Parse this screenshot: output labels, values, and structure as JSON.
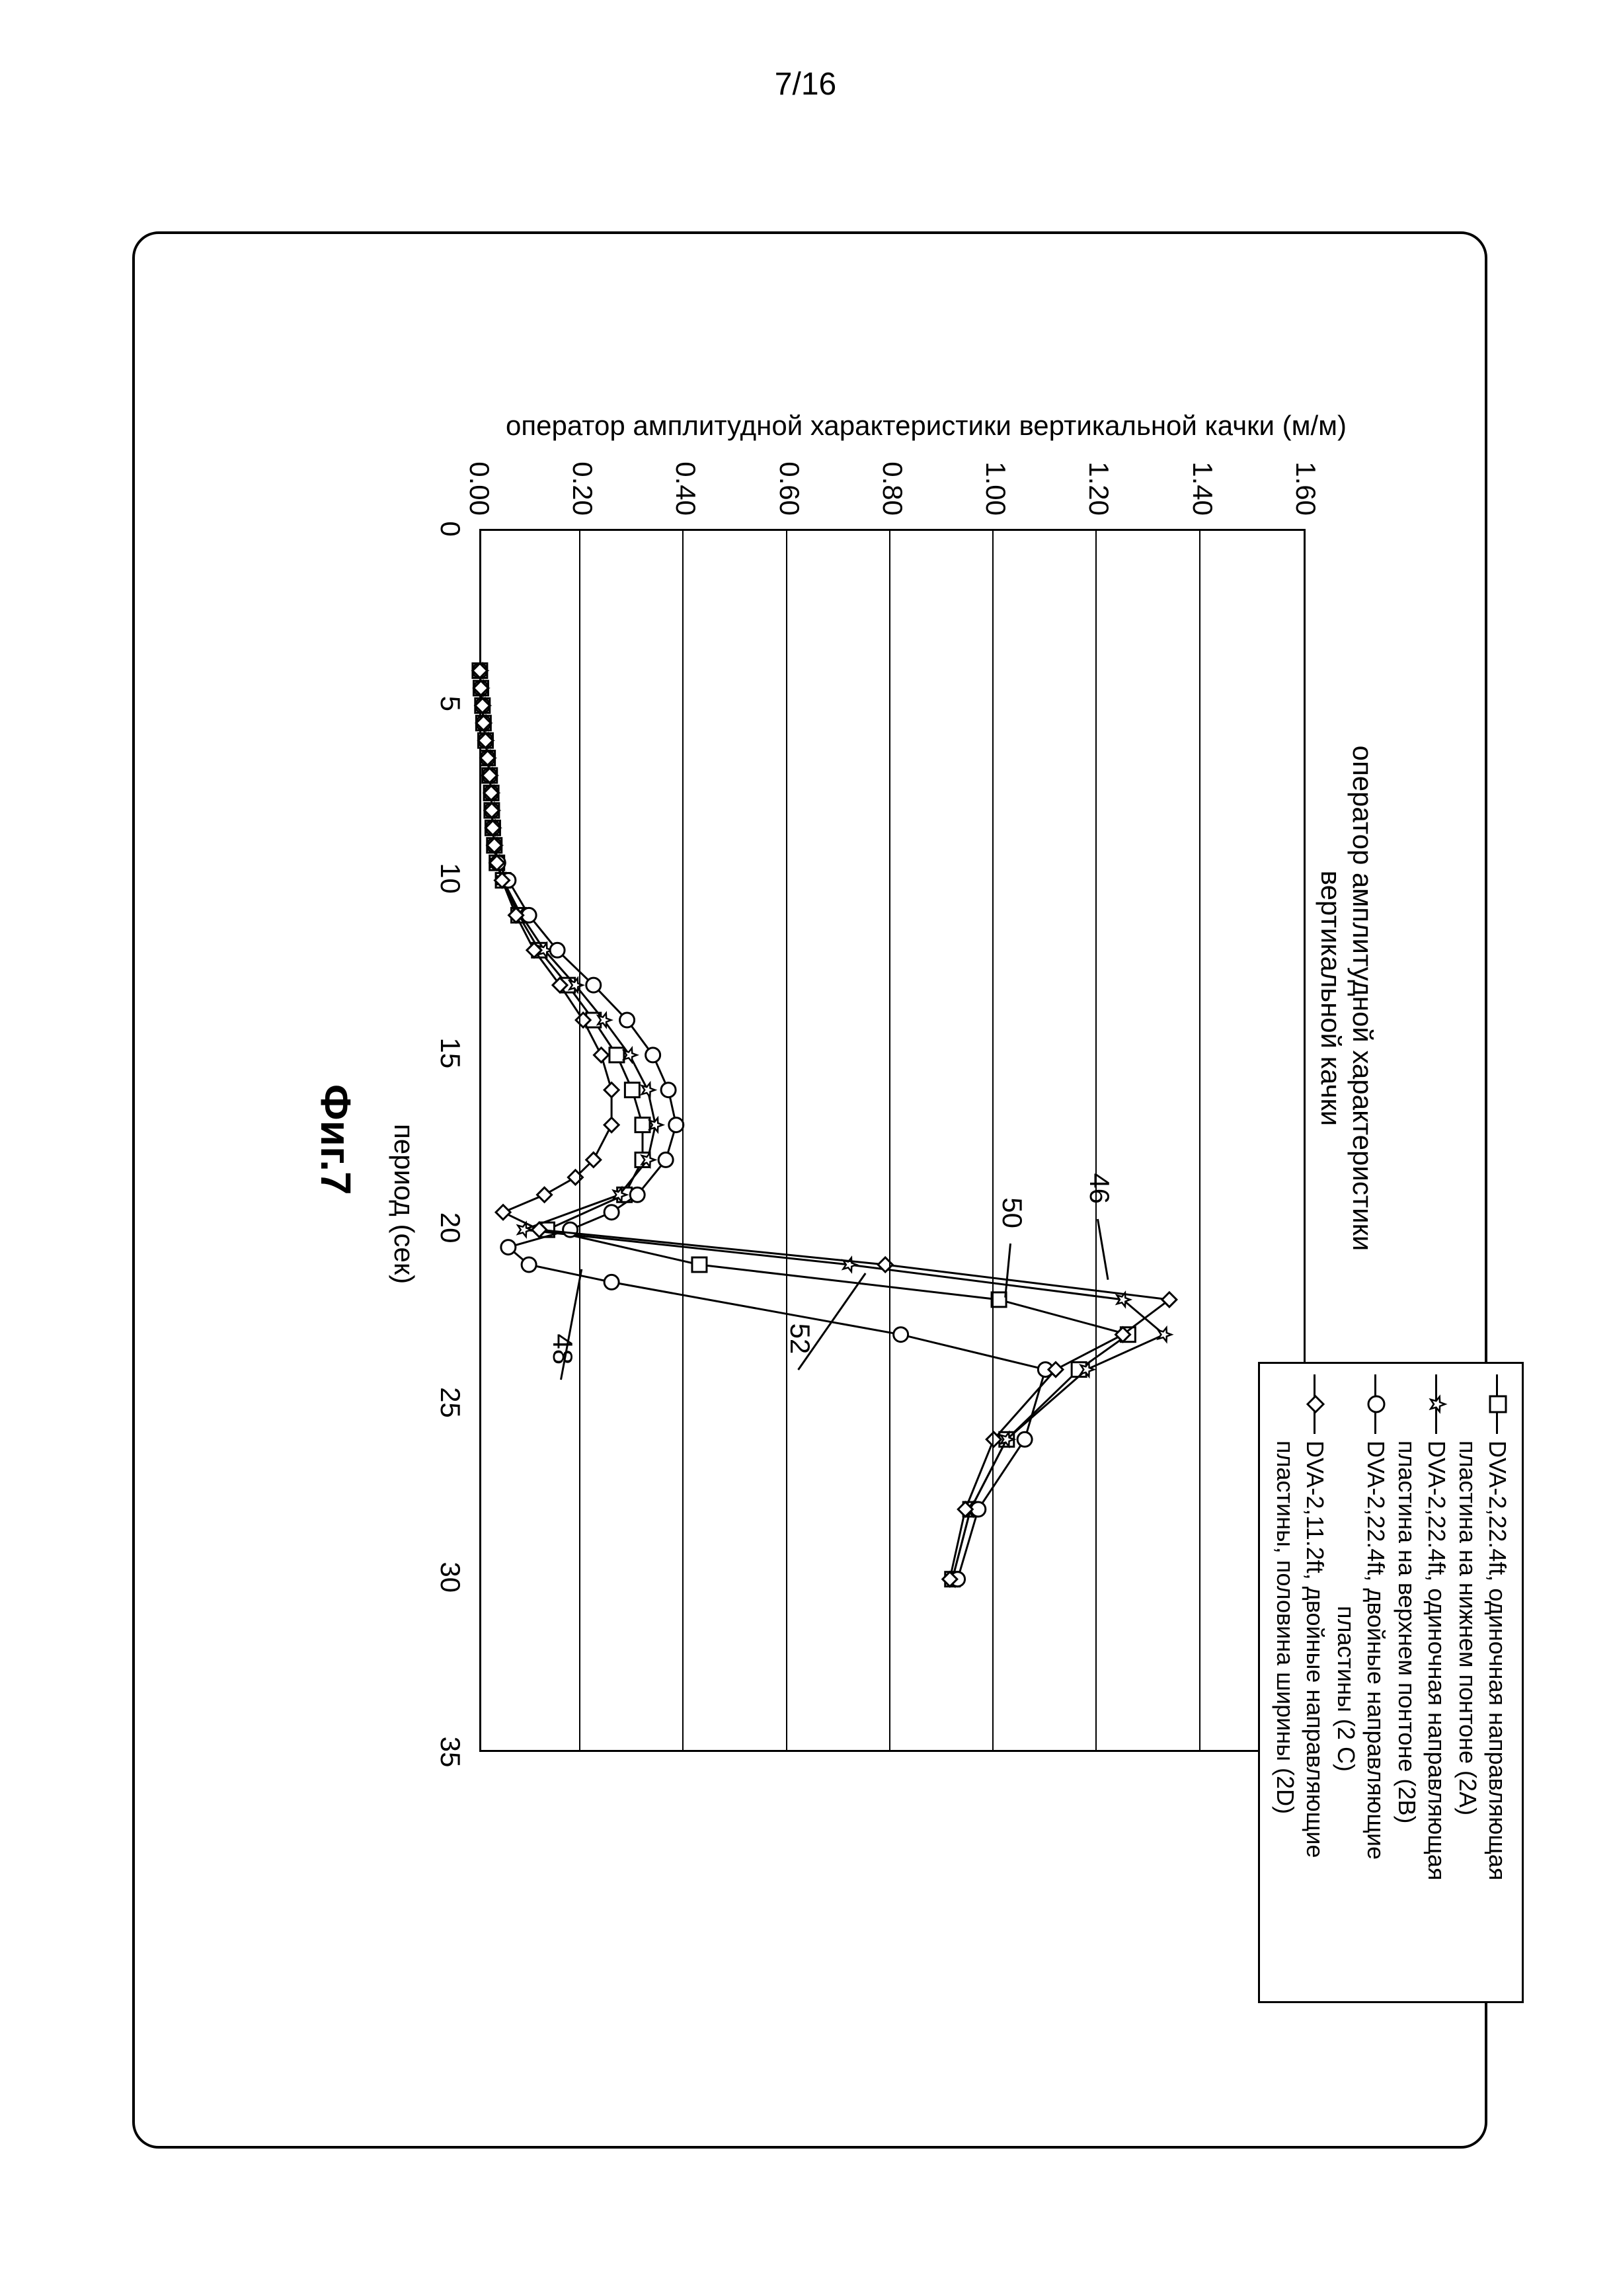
{
  "page_number": "7/16",
  "figure_caption": "Фиг.7",
  "chart": {
    "type": "line",
    "title_line1": "оператор амплитудной характеристики",
    "title_line2": "вертикальной качки",
    "xlabel": "период (сек)",
    "ylabel": "оператор амплитудной характеристики вертикальной качки (м/м)",
    "xlim": [
      0,
      35
    ],
    "ylim": [
      0.0,
      1.6
    ],
    "xticks": [
      0,
      5,
      10,
      15,
      20,
      25,
      30,
      35
    ],
    "yticks": [
      "0.00",
      "0.20",
      "0.40",
      "0.60",
      "0.80",
      "1.00",
      "1.20",
      "1.40",
      "1.60"
    ],
    "background_color": "#ffffff",
    "grid_color": "#000000",
    "axis_color": "#000000",
    "tick_fontsize": 42,
    "label_fontsize": 42,
    "title_fontsize": 42,
    "line_width": 3,
    "marker_size": 22,
    "series": [
      {
        "id": "2A",
        "marker": "square",
        "color": "#000000",
        "fill": "#ffffff",
        "label_line1": "DVA-2,22.4ft, одиночная направляющая",
        "label_line2": "пластина на нижнем понтоне (2A)",
        "x": [
          4,
          4.5,
          5,
          5.5,
          6,
          6.5,
          7,
          7.5,
          8,
          8.5,
          9,
          9.5,
          10,
          11,
          12,
          13,
          14,
          15,
          16,
          17,
          18,
          19,
          20,
          21,
          22,
          23,
          24,
          26,
          28,
          30
        ],
        "y": [
          0.005,
          0.007,
          0.01,
          0.012,
          0.016,
          0.02,
          0.024,
          0.027,
          0.028,
          0.03,
          0.033,
          0.038,
          0.05,
          0.08,
          0.12,
          0.175,
          0.225,
          0.27,
          0.3,
          0.32,
          0.32,
          0.285,
          0.135,
          0.43,
          1.01,
          1.26,
          1.165,
          1.025,
          0.955,
          0.92
        ]
      },
      {
        "id": "2B",
        "marker": "star",
        "color": "#000000",
        "fill": "#ffffff",
        "label_line1": "DVA-2,22.4ft, одиночная направляющая",
        "label_line2": "пластина на верхнем понтоне (2B)",
        "x": [
          4,
          4.5,
          5,
          5.5,
          6,
          6.5,
          7,
          7.5,
          8,
          8.5,
          9,
          9.5,
          10,
          11,
          12,
          13,
          14,
          15,
          16,
          17,
          18,
          19,
          20,
          21,
          22,
          23,
          24,
          26,
          28,
          30
        ],
        "y": [
          0.005,
          0.007,
          0.01,
          0.012,
          0.016,
          0.02,
          0.024,
          0.027,
          0.028,
          0.03,
          0.033,
          0.038,
          0.05,
          0.085,
          0.13,
          0.19,
          0.245,
          0.295,
          0.33,
          0.345,
          0.33,
          0.275,
          0.09,
          0.72,
          1.25,
          1.33,
          1.18,
          1.025,
          0.955,
          0.92
        ]
      },
      {
        "id": "2C",
        "marker": "circle",
        "color": "#000000",
        "fill": "#ffffff",
        "label_line1": "DVA-2,22.4ft, двойные направляющие",
        "label_line2": "                         пластины (2 C)",
        "x": [
          4,
          4.5,
          5,
          5.5,
          6,
          6.5,
          7,
          7.5,
          8,
          8.5,
          9,
          9.5,
          10,
          11,
          12,
          13,
          14,
          15,
          16,
          17,
          18,
          19,
          19.5,
          20,
          20.5,
          21,
          21.5,
          23,
          24,
          26,
          28,
          30
        ],
        "y": [
          0.005,
          0.007,
          0.01,
          0.012,
          0.016,
          0.02,
          0.024,
          0.027,
          0.028,
          0.03,
          0.033,
          0.04,
          0.06,
          0.1,
          0.155,
          0.225,
          0.29,
          0.34,
          0.37,
          0.385,
          0.365,
          0.31,
          0.26,
          0.18,
          0.06,
          0.1,
          0.26,
          0.82,
          1.1,
          1.06,
          0.97,
          0.93
        ]
      },
      {
        "id": "2D",
        "marker": "diamond",
        "color": "#000000",
        "fill": "#ffffff",
        "label_line1": "DVA-2,11.2ft, двойные направляющие",
        "label_line2": "пластины, половина ширины (2D)",
        "x": [
          4,
          4.5,
          5,
          5.5,
          6,
          6.5,
          7,
          7.5,
          8,
          8.5,
          9,
          9.5,
          10,
          11,
          12,
          13,
          14,
          15,
          16,
          17,
          18,
          18.5,
          19,
          19.5,
          20,
          21,
          22,
          23,
          24,
          26,
          28,
          30
        ],
        "y": [
          0.005,
          0.007,
          0.01,
          0.012,
          0.016,
          0.02,
          0.024,
          0.027,
          0.028,
          0.03,
          0.033,
          0.038,
          0.048,
          0.075,
          0.11,
          0.16,
          0.205,
          0.24,
          0.26,
          0.26,
          0.225,
          0.19,
          0.13,
          0.05,
          0.12,
          0.79,
          1.34,
          1.25,
          1.12,
          1.0,
          0.945,
          0.915
        ]
      }
    ],
    "callouts": [
      {
        "label": "46",
        "x_label": 19.0,
        "y_label": 1.2,
        "series": "2D"
      },
      {
        "label": "50",
        "x_label": 19.7,
        "y_label": 1.03,
        "series": "2B"
      },
      {
        "label": "52",
        "x_label": 23.3,
        "y_label": 0.62,
        "series": "2A"
      },
      {
        "label": "48",
        "x_label": 23.6,
        "y_label": 0.16,
        "series": "2C"
      }
    ]
  },
  "legend": {
    "border_color": "#000000",
    "background": "#ffffff",
    "fontsize": 36
  }
}
